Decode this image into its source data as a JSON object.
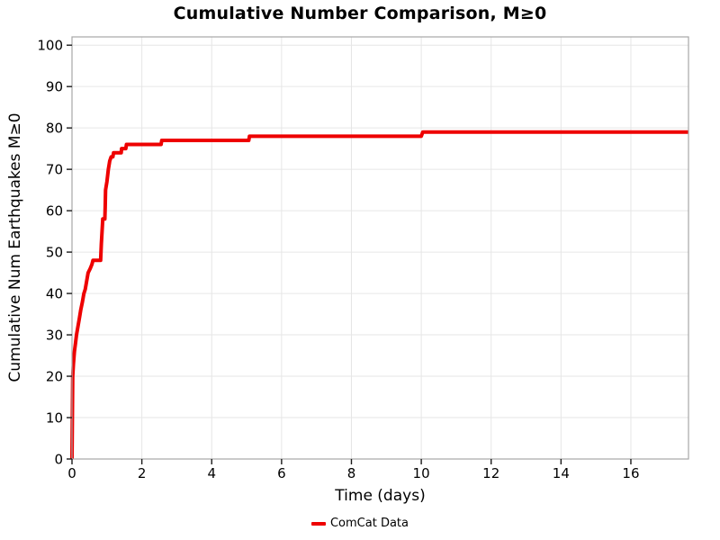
{
  "chart_data": {
    "type": "line",
    "title": "Cumulative Number Comparison, M≥0",
    "xlabel": "Time (days)",
    "ylabel": "Cumulative Num Earthquakes M≥0",
    "xlim": [
      0,
      17.65
    ],
    "ylim": [
      0,
      102
    ],
    "xticks": [
      0,
      2,
      4,
      6,
      8,
      10,
      12,
      14,
      16
    ],
    "yticks": [
      0,
      10,
      20,
      30,
      40,
      50,
      60,
      70,
      80,
      90,
      100
    ],
    "grid": true,
    "legend_position": "bottom-center",
    "series": [
      {
        "name": "ComCat Data",
        "color": "#ee0000",
        "line_width": 4,
        "points": [
          [
            0.0,
            0
          ],
          [
            0.02,
            20
          ],
          [
            0.04,
            23
          ],
          [
            0.07,
            26
          ],
          [
            0.1,
            28
          ],
          [
            0.13,
            30
          ],
          [
            0.17,
            32
          ],
          [
            0.21,
            34
          ],
          [
            0.25,
            36
          ],
          [
            0.3,
            38
          ],
          [
            0.34,
            40
          ],
          [
            0.38,
            41
          ],
          [
            0.42,
            43
          ],
          [
            0.46,
            45
          ],
          [
            0.52,
            46
          ],
          [
            0.57,
            47
          ],
          [
            0.6,
            48
          ],
          [
            0.82,
            48
          ],
          [
            0.84,
            52
          ],
          [
            0.86,
            55
          ],
          [
            0.88,
            58
          ],
          [
            0.94,
            58
          ],
          [
            0.95,
            61
          ],
          [
            0.96,
            65
          ],
          [
            1.0,
            67
          ],
          [
            1.04,
            70
          ],
          [
            1.08,
            72
          ],
          [
            1.12,
            73
          ],
          [
            1.17,
            73
          ],
          [
            1.19,
            74
          ],
          [
            1.41,
            74
          ],
          [
            1.42,
            75
          ],
          [
            1.54,
            75
          ],
          [
            1.56,
            76
          ],
          [
            2.55,
            76
          ],
          [
            2.57,
            77
          ],
          [
            5.06,
            77
          ],
          [
            5.08,
            78
          ],
          [
            10.0,
            78
          ],
          [
            10.04,
            79
          ],
          [
            17.65,
            79
          ]
        ]
      }
    ]
  },
  "colors": {
    "background": "#ffffff",
    "grid": "#e6e6e6",
    "spine": "#a6a6a6",
    "tick_mark": "#1a1a1a",
    "text": "#000000",
    "line": "#ee0000"
  }
}
